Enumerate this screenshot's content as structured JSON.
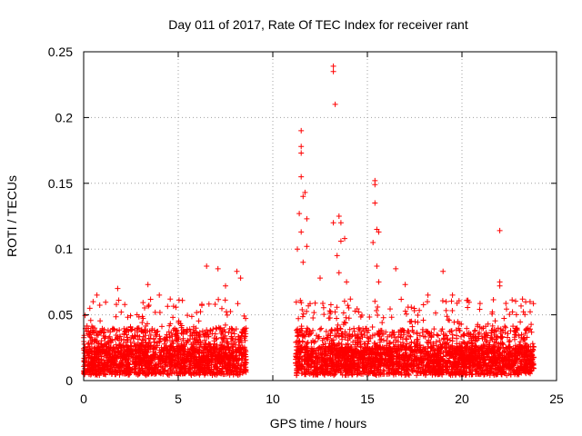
{
  "chart_data": {
    "type": "scatter",
    "title": "Day 011 of 2017, Rate Of TEC Index for receiver rant",
    "xlabel": "GPS time / hours",
    "ylabel": "ROTI / TECUs",
    "xlim": [
      0,
      25
    ],
    "ylim": [
      0,
      0.25
    ],
    "x_ticks": [
      0,
      5,
      10,
      15,
      20,
      25
    ],
    "y_ticks": [
      0,
      0.05,
      0.1,
      0.15,
      0.2,
      0.25
    ],
    "x_tick_labels": [
      "0",
      "5",
      "10",
      "15",
      "20",
      "25"
    ],
    "y_tick_labels": [
      "0",
      "0.05",
      "0.1",
      "0.15",
      "0.2",
      "0.25"
    ],
    "grid": true,
    "marker": "plus",
    "color": "#ff0000",
    "data_segments": [
      {
        "x_start": 0.0,
        "x_end": 8.6,
        "typical_max": 0.04
      },
      {
        "x_start": 11.2,
        "x_end": 23.8,
        "typical_max": 0.04
      }
    ],
    "notable_points": [
      {
        "x": 0.5,
        "y": 0.06
      },
      {
        "x": 0.7,
        "y": 0.065
      },
      {
        "x": 1.8,
        "y": 0.07
      },
      {
        "x": 3.4,
        "y": 0.073
      },
      {
        "x": 4.0,
        "y": 0.065
      },
      {
        "x": 6.5,
        "y": 0.087
      },
      {
        "x": 7.1,
        "y": 0.085
      },
      {
        "x": 7.5,
        "y": 0.072
      },
      {
        "x": 8.1,
        "y": 0.083
      },
      {
        "x": 8.3,
        "y": 0.078
      },
      {
        "x": 11.3,
        "y": 0.1
      },
      {
        "x": 11.4,
        "y": 0.127
      },
      {
        "x": 11.5,
        "y": 0.19
      },
      {
        "x": 11.5,
        "y": 0.178
      },
      {
        "x": 11.5,
        "y": 0.173
      },
      {
        "x": 11.5,
        "y": 0.155
      },
      {
        "x": 11.6,
        "y": 0.14
      },
      {
        "x": 11.7,
        "y": 0.143
      },
      {
        "x": 11.8,
        "y": 0.123
      },
      {
        "x": 11.5,
        "y": 0.113
      },
      {
        "x": 11.8,
        "y": 0.102
      },
      {
        "x": 11.6,
        "y": 0.09
      },
      {
        "x": 12.5,
        "y": 0.078
      },
      {
        "x": 13.2,
        "y": 0.239
      },
      {
        "x": 13.2,
        "y": 0.235
      },
      {
        "x": 13.3,
        "y": 0.21
      },
      {
        "x": 13.2,
        "y": 0.12
      },
      {
        "x": 13.4,
        "y": 0.095
      },
      {
        "x": 13.5,
        "y": 0.125
      },
      {
        "x": 13.6,
        "y": 0.12
      },
      {
        "x": 13.6,
        "y": 0.106
      },
      {
        "x": 13.5,
        "y": 0.082
      },
      {
        "x": 13.8,
        "y": 0.108
      },
      {
        "x": 13.9,
        "y": 0.075
      },
      {
        "x": 14.1,
        "y": 0.062
      },
      {
        "x": 15.4,
        "y": 0.152
      },
      {
        "x": 15.4,
        "y": 0.149
      },
      {
        "x": 15.4,
        "y": 0.135
      },
      {
        "x": 15.3,
        "y": 0.105
      },
      {
        "x": 15.5,
        "y": 0.115
      },
      {
        "x": 15.6,
        "y": 0.113
      },
      {
        "x": 15.5,
        "y": 0.087
      },
      {
        "x": 15.6,
        "y": 0.075
      },
      {
        "x": 16.5,
        "y": 0.085
      },
      {
        "x": 17.0,
        "y": 0.073
      },
      {
        "x": 18.2,
        "y": 0.065
      },
      {
        "x": 19.0,
        "y": 0.083
      },
      {
        "x": 19.5,
        "y": 0.065
      },
      {
        "x": 22.0,
        "y": 0.114
      },
      {
        "x": 22.0,
        "y": 0.075
      },
      {
        "x": 22.0,
        "y": 0.072
      },
      {
        "x": 23.2,
        "y": 0.062
      },
      {
        "x": 23.6,
        "y": 0.06
      }
    ]
  }
}
